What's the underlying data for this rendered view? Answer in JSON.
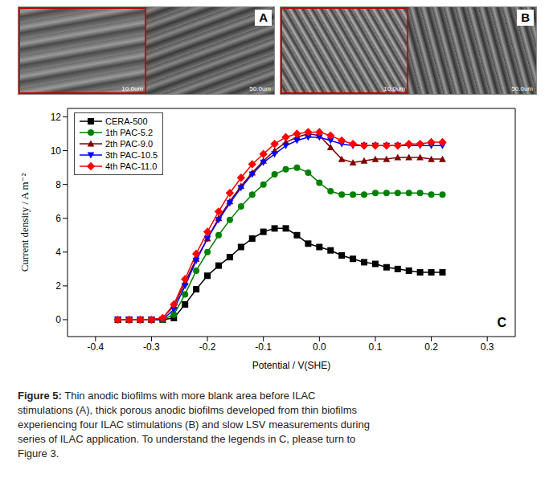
{
  "images": [
    {
      "label": "A",
      "scale_bars": [
        "10.0um",
        "50.0um"
      ]
    },
    {
      "label": "B",
      "scale_bars": [
        "10.0um",
        "50.0um"
      ]
    }
  ],
  "chart_data": {
    "type": "line",
    "annotations": [
      "C"
    ],
    "x_label": "Potential / V(SHE)",
    "y_label": "Current density / A m⁻²",
    "x": [
      -0.36,
      -0.34,
      -0.32,
      -0.3,
      -0.28,
      -0.26,
      -0.24,
      -0.22,
      -0.2,
      -0.18,
      -0.16,
      -0.14,
      -0.12,
      -0.1,
      -0.08,
      -0.06,
      -0.04,
      -0.02,
      0,
      0.02,
      0.04,
      0.06,
      0.08,
      0.1,
      0.12,
      0.14,
      0.16,
      0.18,
      0.2,
      0.22
    ],
    "series": [
      {
        "name": "CERA-500",
        "color": "#000000",
        "marker": "square",
        "values": [
          0,
          0,
          0,
          0,
          0,
          0.1,
          0.9,
          1.8,
          2.6,
          3.2,
          3.7,
          4.3,
          4.8,
          5.2,
          5.4,
          5.4,
          5.0,
          4.5,
          4.3,
          4.1,
          3.8,
          3.6,
          3.4,
          3.3,
          3.1,
          3.0,
          2.9,
          2.8,
          2.8,
          2.8
        ]
      },
      {
        "name": "1th PAC-5.2",
        "color": "#008000",
        "marker": "circle",
        "values": [
          0,
          0,
          0,
          0,
          0,
          0.3,
          1.5,
          2.9,
          4.0,
          5.0,
          5.9,
          6.7,
          7.4,
          8.0,
          8.6,
          8.9,
          9.0,
          8.7,
          8.1,
          7.6,
          7.4,
          7.4,
          7.4,
          7.5,
          7.5,
          7.5,
          7.5,
          7.5,
          7.4,
          7.4
        ]
      },
      {
        "name": "2th PAC-9.0",
        "color": "#800000",
        "marker": "triangle",
        "values": [
          0,
          0,
          0,
          0,
          0.1,
          0.8,
          2.2,
          3.6,
          4.8,
          6.0,
          7.0,
          7.9,
          8.7,
          9.4,
          10.0,
          10.5,
          10.8,
          11.0,
          10.9,
          10.2,
          9.5,
          9.3,
          9.4,
          9.5,
          9.5,
          9.6,
          9.6,
          9.6,
          9.5,
          9.5
        ]
      },
      {
        "name": "3th PAC-10.5",
        "color": "#0000ff",
        "marker": "triangle-down",
        "values": [
          0,
          0,
          0,
          0,
          0,
          0.6,
          2.0,
          3.5,
          4.8,
          5.9,
          6.9,
          7.8,
          8.6,
          9.3,
          9.8,
          10.3,
          10.6,
          10.8,
          10.8,
          10.6,
          10.4,
          10.3,
          10.3,
          10.3,
          10.3,
          10.3,
          10.3,
          10.3,
          10.3,
          10.3
        ]
      },
      {
        "name": "4th PAC-11.0",
        "color": "#ff0000",
        "marker": "diamond",
        "values": [
          0,
          0,
          0,
          0,
          0.1,
          0.9,
          2.4,
          3.9,
          5.2,
          6.4,
          7.5,
          8.4,
          9.2,
          9.8,
          10.4,
          10.8,
          11.0,
          11.1,
          11.1,
          10.9,
          10.6,
          10.4,
          10.3,
          10.3,
          10.3,
          10.3,
          10.4,
          10.4,
          10.5,
          10.5
        ]
      }
    ],
    "xlim": [
      -0.45,
      0.35
    ],
    "xticks": [
      -0.4,
      -0.3,
      -0.2,
      -0.1,
      {
        "value": 0,
        "label": "0.0"
      },
      0.1,
      0.2,
      0.3
    ],
    "ylim": [
      -1,
      12.5
    ],
    "yticks": [
      0,
      2,
      4,
      6,
      8,
      10,
      12
    ],
    "grid": false,
    "legend": "upper left"
  },
  "caption": {
    "label": "Figure 5:",
    "text": "Thin anodic biofilms with more blank area before ILAC stimulations (A), thick porous anodic biofilms developed from thin biofilms experiencing four ILAC stimulations (B) and slow LSV measurements during series of ILAC application. To understand the legends in C, please turn to Figure 3."
  }
}
